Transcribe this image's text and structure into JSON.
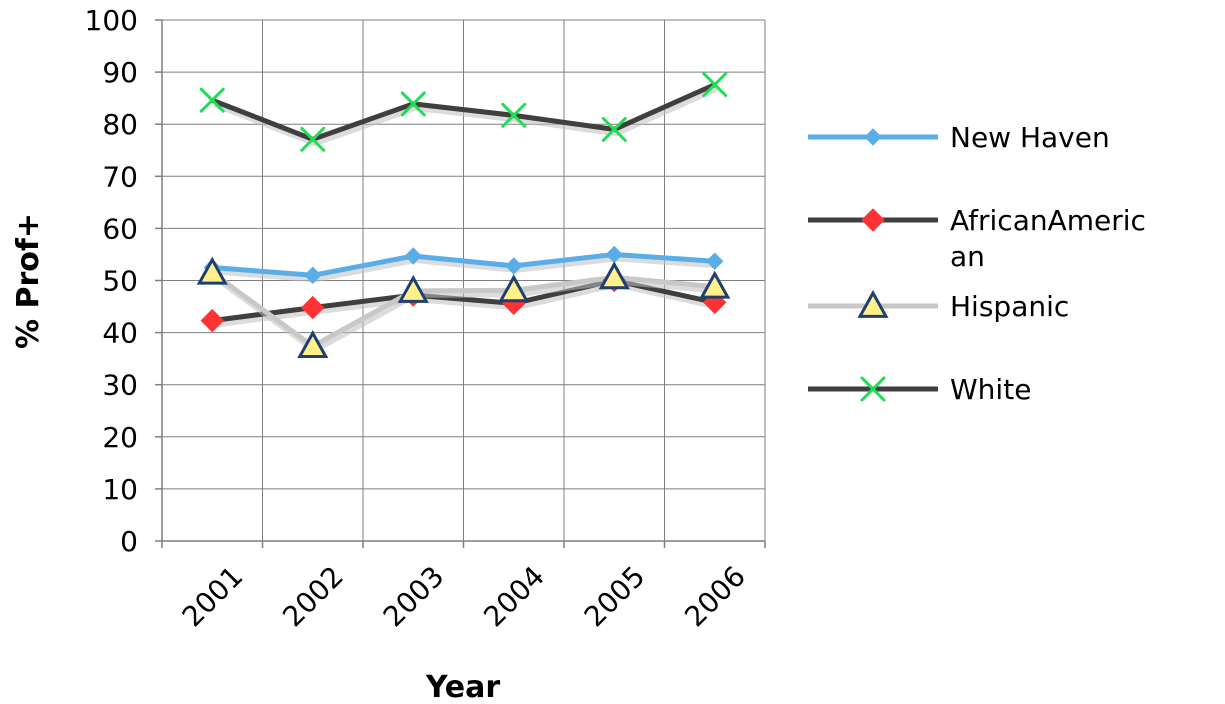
{
  "chart_data": {
    "type": "line",
    "title": "",
    "xlabel": "Year",
    "ylabel": "% Prof+",
    "ylim": [
      0,
      100
    ],
    "y_ticks": [
      "0",
      "10",
      "20",
      "30",
      "40",
      "50",
      "60",
      "70",
      "80",
      "90",
      "100"
    ],
    "categories": [
      "2001",
      "2002",
      "2003",
      "2004",
      "2005",
      "2006"
    ],
    "grid": true,
    "legend_position": "right",
    "series": [
      {
        "name": "New Haven",
        "color": "#5aaee8",
        "marker": "diamond",
        "values": [
          52.5,
          51.0,
          54.7,
          52.8,
          55.0,
          53.7
        ]
      },
      {
        "name": "AfricanAmerican",
        "name_lines": [
          "AfricanAmeric",
          "an"
        ],
        "color": "#3f3f3f",
        "marker_color": "#ff3333",
        "marker": "diamond",
        "values": [
          42.3,
          44.8,
          47.2,
          45.6,
          50.0,
          45.8
        ]
      },
      {
        "name": "Hispanic",
        "color": "#c8c8c8",
        "marker_color": "#fff08a",
        "marker_stroke": "#1f3f73",
        "marker": "triangle",
        "values": [
          51.5,
          37.4,
          48.0,
          48.1,
          50.6,
          48.8
        ]
      },
      {
        "name": "White",
        "color": "#3f3f3f",
        "marker_color": "#22dd55",
        "marker": "x",
        "values": [
          84.6,
          77.1,
          83.9,
          81.7,
          79.0,
          87.6
        ]
      }
    ]
  }
}
